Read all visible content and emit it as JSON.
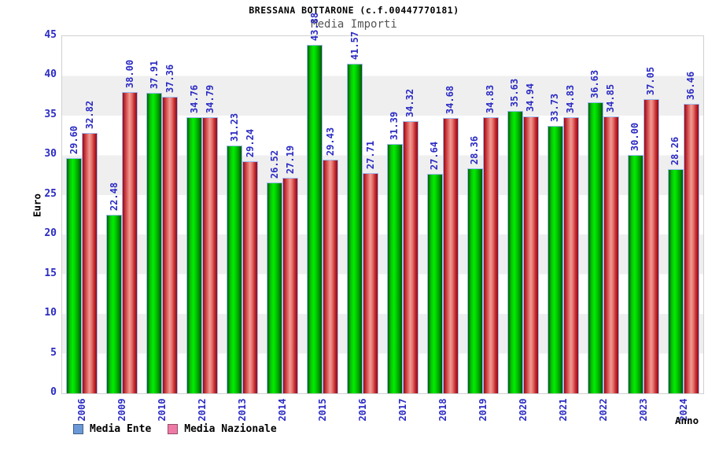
{
  "title": "BRESSANA BOTTARONE (c.f.00447770181)",
  "subtitle": "Media Importi",
  "axes": {
    "y_label": "Euro",
    "x_label": "Anno",
    "y_ticks": [
      0,
      5,
      10,
      15,
      20,
      25,
      30,
      35,
      40,
      45
    ]
  },
  "legend": {
    "items": [
      {
        "label": "Media Ente",
        "swatch_color": "#6b99d8"
      },
      {
        "label": "Media Nazionale",
        "swatch_color": "#ee7ba6"
      }
    ]
  },
  "colors": {
    "axis_text": "#2b2bc4",
    "value_label": "#2b2bc4",
    "subtitle_text": "#555555",
    "plot_border": "#d0d0d0",
    "band_white": "#ffffff",
    "band_gray": "#efefef",
    "bar_green_center": "#00ee00",
    "bar_red_center": "#f29b94",
    "bar_outline_blue": "#9cbdf2"
  },
  "chart_data": {
    "type": "bar",
    "title": "BRESSANA BOTTARONE (c.f.00447770181)",
    "subtitle": "Media Importi",
    "xlabel": "Anno",
    "ylabel": "Euro",
    "ylim": [
      0,
      45
    ],
    "grid": "horizontal-bands",
    "legend_position": "bottom-left",
    "categories": [
      "2006",
      "2009",
      "2010",
      "2012",
      "2013",
      "2014",
      "2015",
      "2016",
      "2017",
      "2018",
      "2019",
      "2020",
      "2021",
      "2022",
      "2023",
      "2024"
    ],
    "series": [
      {
        "name": "Media Ente",
        "values": [
          29.6,
          22.48,
          37.91,
          34.76,
          31.23,
          26.52,
          43.88,
          41.57,
          31.39,
          27.64,
          28.36,
          35.63,
          33.73,
          36.63,
          30.0,
          28.26
        ]
      },
      {
        "name": "Media Nazionale",
        "values": [
          32.82,
          38.0,
          37.36,
          34.79,
          29.24,
          27.19,
          29.43,
          27.71,
          34.32,
          34.68,
          34.83,
          34.94,
          34.83,
          34.85,
          37.05,
          36.46
        ]
      }
    ]
  }
}
